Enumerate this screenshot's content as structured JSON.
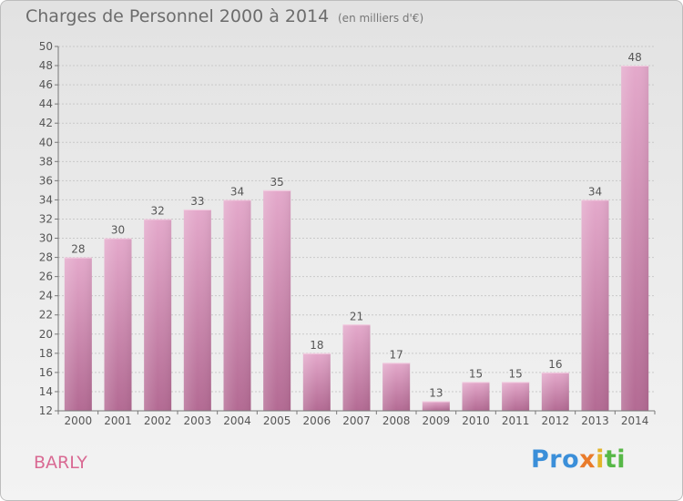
{
  "chart_data": {
    "type": "bar",
    "title": "Charges de Personnel 2000 à 2014",
    "subtitle": "(en milliers d'€)",
    "categories": [
      "2000",
      "2001",
      "2002",
      "2003",
      "2004",
      "2005",
      "2006",
      "2007",
      "2008",
      "2009",
      "2010",
      "2011",
      "2012",
      "2013",
      "2014"
    ],
    "values": [
      28,
      30,
      32,
      33,
      34,
      35,
      18,
      21,
      17,
      13,
      15,
      15,
      16,
      34,
      48
    ],
    "ylim": [
      12,
      50
    ],
    "yticks": [
      12,
      14,
      16,
      18,
      20,
      22,
      24,
      26,
      28,
      30,
      32,
      34,
      36,
      38,
      40,
      42,
      44,
      46,
      48,
      50
    ],
    "grid": true,
    "bar_color": "#d38ab2"
  },
  "commune": "BARLY",
  "logo": {
    "p1": "Pro",
    "p2": "x",
    "p3": "i",
    "p4": "ti"
  }
}
